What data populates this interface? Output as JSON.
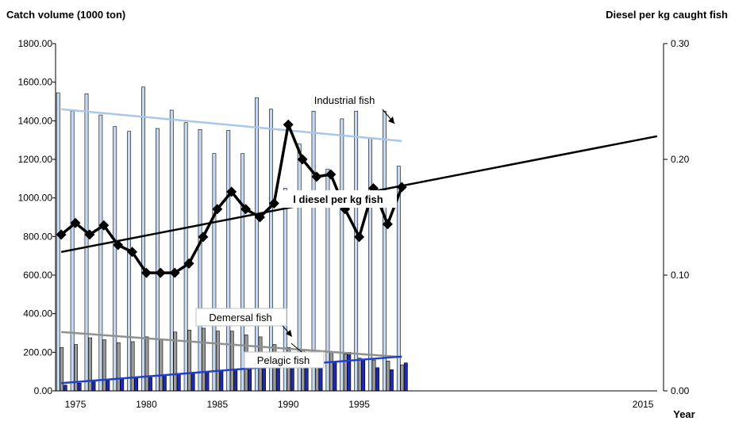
{
  "chart_data": {
    "type": "bar",
    "left_axis_title": "Catch volume (1000 ton)",
    "right_axis_title": "Diesel per kg caught fish",
    "x_axis_title": "Year",
    "left_ylim": [
      0,
      1800
    ],
    "left_ticks": [
      "1800.00",
      "1600.00",
      "1400.00",
      "1200.00",
      "1000.00",
      "800.00",
      "600.00",
      "400.00",
      "200.00",
      "0.00"
    ],
    "right_ylim": [
      0,
      0.3
    ],
    "right_ticks": [
      "0.30",
      "0.20",
      "0.10",
      "0.00"
    ],
    "x_ticks": [
      "1975",
      "1980",
      "1985",
      "1990",
      "1995",
      "2015"
    ],
    "years": [
      1974,
      1975,
      1976,
      1977,
      1978,
      1979,
      1980,
      1981,
      1982,
      1983,
      1984,
      1985,
      1986,
      1987,
      1988,
      1989,
      1990,
      1991,
      1992,
      1993,
      1994,
      1995,
      1996,
      1997,
      1998
    ],
    "series": [
      {
        "name": "Industrial fish",
        "axis": "left",
        "kind": "bar",
        "color": "#c6d9f1",
        "values": [
          1545,
          1450,
          1540,
          1430,
          1370,
          1345,
          1575,
          1360,
          1455,
          1390,
          1355,
          1230,
          1350,
          1230,
          1520,
          1460,
          1050,
          1280,
          1450,
          1150,
          1410,
          1450,
          1310,
          1450,
          1165
        ]
      },
      {
        "name": "Demersal fish",
        "axis": "left",
        "kind": "bar",
        "color": "#9a9a9a",
        "values": [
          225,
          240,
          275,
          265,
          250,
          255,
          280,
          270,
          305,
          315,
          325,
          310,
          310,
          290,
          280,
          240,
          225,
          215,
          205,
          200,
          190,
          170,
          160,
          155,
          135
        ]
      },
      {
        "name": "Pelagic fish",
        "axis": "left",
        "kind": "bar",
        "color": "#1f2aa8",
        "values": [
          30,
          40,
          55,
          60,
          60,
          65,
          70,
          80,
          85,
          90,
          95,
          100,
          110,
          115,
          120,
          125,
          130,
          120,
          175,
          150,
          200,
          165,
          120,
          110,
          145
        ]
      },
      {
        "name": "l diesel per kg fish",
        "axis": "right",
        "kind": "line",
        "color": "#000000",
        "values": [
          0.135,
          0.145,
          0.135,
          0.143,
          0.126,
          0.12,
          0.102,
          0.102,
          0.102,
          0.11,
          0.133,
          0.157,
          0.172,
          0.157,
          0.15,
          0.162,
          0.23,
          0.2,
          0.185,
          0.187,
          0.157,
          0.133,
          0.175,
          0.144,
          0.176
        ]
      }
    ],
    "trendlines": [
      {
        "series": "Industrial fish",
        "axis": "left",
        "color": "#a6c8ea",
        "x": [
          1974,
          1998
        ],
        "y": [
          1460,
          1295
        ]
      },
      {
        "series": "Demersal fish",
        "axis": "left",
        "color": "#909090",
        "x": [
          1974,
          1998
        ],
        "y": [
          305,
          175
        ]
      },
      {
        "series": "Pelagic fish",
        "axis": "left",
        "color": "#1f3fd0",
        "x": [
          1974,
          1998
        ],
        "y": [
          40,
          178
        ]
      },
      {
        "series": "l diesel per kg fish",
        "axis": "right",
        "color": "#000000",
        "x": [
          1974,
          2016
        ],
        "y": [
          0.12,
          0.22
        ]
      }
    ],
    "annotations": [
      "Industrial fish",
      "l diesel per kg fish",
      "Demersal fish",
      "Pelagic fish"
    ]
  }
}
